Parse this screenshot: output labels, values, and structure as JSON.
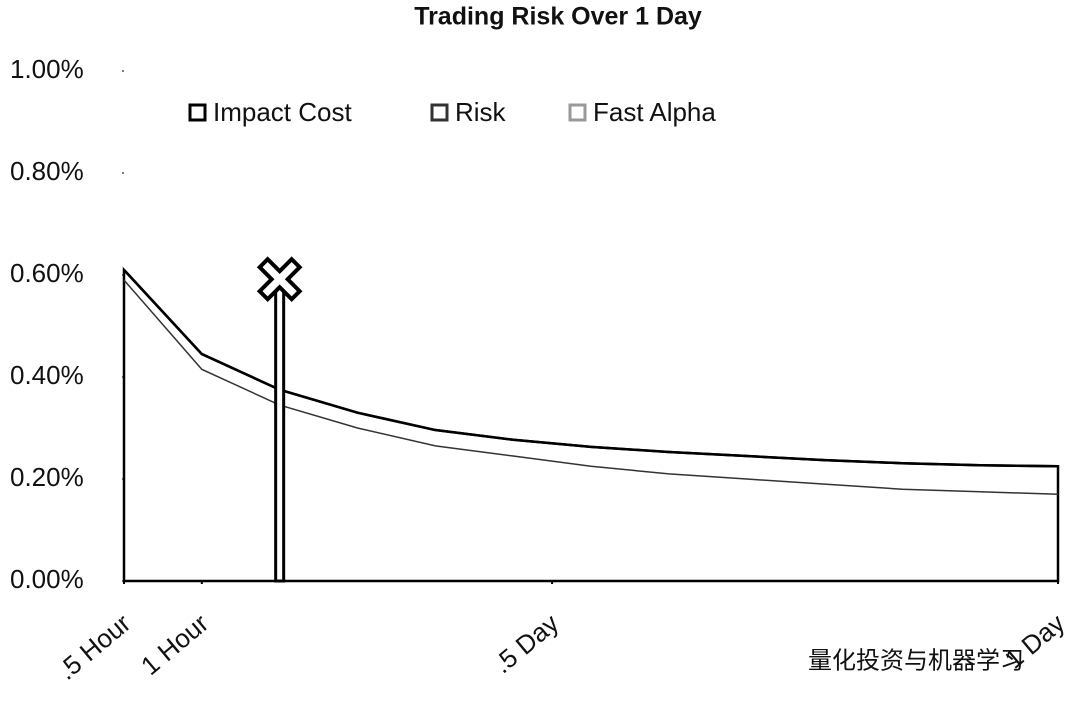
{
  "chart_data": {
    "type": "line",
    "title": "Trading Risk Over 1 Day",
    "x": [
      0.5,
      1,
      1.5,
      2,
      2.5,
      3,
      3.5,
      4,
      4.5,
      5,
      5.5,
      6,
      6.5
    ],
    "series": [
      {
        "name": "Impact Cost",
        "color": "#000000",
        "values": [
          0.61,
          0.445,
          0.375,
          0.33,
          0.296,
          0.277,
          0.263,
          0.253,
          0.245,
          0.237,
          0.231,
          0.227,
          0.225
        ]
      },
      {
        "name": "Risk",
        "color": "#333333",
        "values": [
          0.59,
          0.415,
          0.345,
          0.3,
          0.265,
          0.245,
          0.225,
          0.21,
          0.2,
          0.19,
          0.18,
          0.175,
          0.17
        ]
      },
      {
        "name": "Fast Alpha",
        "color": "#999999",
        "values": [
          null,
          null,
          null,
          null,
          null,
          null,
          null,
          null,
          null,
          null,
          null,
          null,
          null
        ]
      }
    ],
    "xlim": [
      0.5,
      6.5
    ],
    "xticks": [
      {
        "value": 0.5,
        "label": ".5 Hour"
      },
      {
        "value": 1,
        "label": "1 Hour"
      },
      {
        "value": 3.25,
        "label": ".5 Day"
      },
      {
        "value": 6.5,
        "label": "1 Day"
      }
    ],
    "ylim": [
      0,
      1
    ],
    "yticks": [
      {
        "value": 0,
        "label": "0.00%"
      },
      {
        "value": 0.2,
        "label": "0.20%"
      },
      {
        "value": 0.4,
        "label": "0.40%"
      },
      {
        "value": 0.6,
        "label": "0.60%"
      },
      {
        "value": 0.8,
        "label": "0.80%"
      },
      {
        "value": 1,
        "label": "1.00%"
      }
    ],
    "marker": {
      "x": 1.5,
      "y": 0.58
    },
    "watermark": "量化投资与机器学习"
  }
}
